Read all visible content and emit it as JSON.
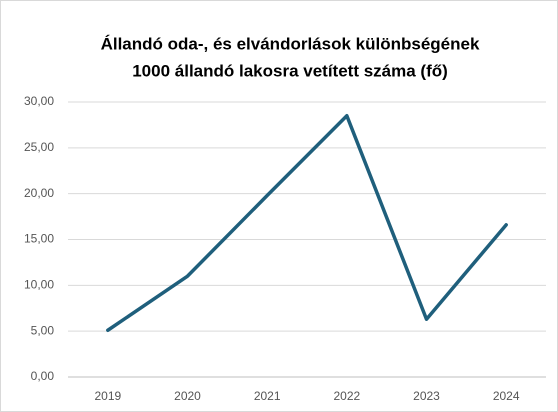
{
  "chart_data": {
    "type": "line",
    "title": [
      "Állandó oda-, és elvándorlások különbségének",
      "1000 állandó lakosra vetített száma (fő)"
    ],
    "categories": [
      "2019",
      "2020",
      "2021",
      "2022",
      "2023",
      "2024"
    ],
    "series": [
      {
        "name": null,
        "color": "#1f5f7c",
        "values": [
          5.1,
          11.0,
          19.8,
          28.5,
          6.3,
          16.6
        ]
      }
    ],
    "ylim": [
      0,
      30
    ],
    "yticks": [
      {
        "value": 0,
        "label": "0,00"
      },
      {
        "value": 5,
        "label": "5,00"
      },
      {
        "value": 10,
        "label": "10,00"
      },
      {
        "value": 15,
        "label": "15,00"
      },
      {
        "value": 20,
        "label": "20,00"
      },
      {
        "value": 25,
        "label": "25,00"
      },
      {
        "value": 30,
        "label": "30,00"
      }
    ],
    "grid": true
  }
}
